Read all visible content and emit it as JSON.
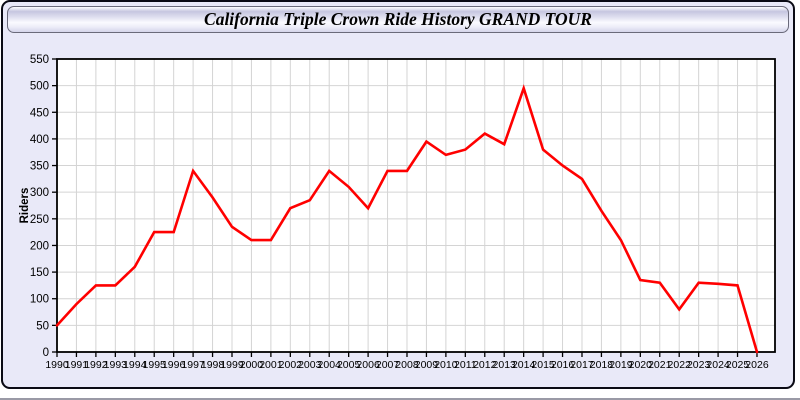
{
  "page": {
    "title": "California Triple Crown Ride History GRAND TOUR"
  },
  "chart_data": {
    "type": "line",
    "title": "California Triple Crown Ride History GRAND TOUR",
    "xlabel": "",
    "ylabel": "Riders",
    "x": [
      1990,
      1991,
      1992,
      1993,
      1994,
      1995,
      1996,
      1997,
      1998,
      1999,
      2000,
      2001,
      2002,
      2003,
      2004,
      2005,
      2006,
      2007,
      2008,
      2009,
      2010,
      2011,
      2012,
      2013,
      2014,
      2015,
      2016,
      2017,
      2018,
      2019,
      2020,
      2021,
      2022,
      2023,
      2024,
      2025,
      2026
    ],
    "values": [
      50,
      90,
      125,
      125,
      160,
      225,
      225,
      340,
      290,
      235,
      210,
      210,
      270,
      285,
      340,
      310,
      270,
      340,
      340,
      395,
      370,
      380,
      410,
      390,
      495,
      380,
      350,
      325,
      265,
      210,
      135,
      130,
      80,
      130,
      128,
      125,
      0
    ],
    "ylim": [
      0,
      550
    ],
    "ytick_step": 50,
    "grid": true,
    "legend": "none",
    "colors": {
      "line": "#ff0000",
      "plot_bg": "#ffffff",
      "grid": "#d4d4d4",
      "axis": "#000000",
      "panel_bg": "#e9e9f8",
      "text": "#000000"
    }
  }
}
